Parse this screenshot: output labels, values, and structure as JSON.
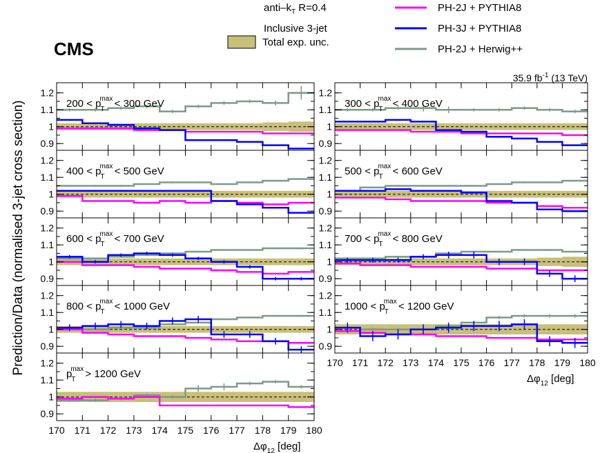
{
  "header": {
    "cms": "CMS",
    "jet_algo": "anti–k",
    "jet_algo_sub": "T",
    "jet_radius": " R=0.4",
    "selection": "Inclusive 3-jet",
    "lumi": "35.9 fb",
    "lumi_sup": "-1",
    "energy": " (13 TeV)"
  },
  "chart_data": {
    "type": "line",
    "title": "",
    "ylabel": "Prediction/Data (normalised 3-jet cross section)",
    "xlabel": "Δφ",
    "xlabel_sub": "12",
    "xlabel_unit": " [deg]",
    "xlim": [
      170,
      180
    ],
    "ylim": [
      0.86,
      1.26
    ],
    "y_ticks": [
      "0.9",
      "1",
      "1.1",
      "1.2"
    ],
    "x_ticks": [
      "170",
      "171",
      "172",
      "173",
      "174",
      "175",
      "176",
      "177",
      "178",
      "179",
      "180"
    ],
    "bin_edges": [
      170,
      171,
      172,
      173,
      174,
      175,
      176,
      177,
      178,
      179,
      180
    ],
    "reference_line": 1.0,
    "legend": [
      {
        "label": "Total exp. unc.",
        "key": "band",
        "color": "#c8bf7a"
      },
      {
        "label": "PH-2J + PYTHIA8",
        "key": "ph2j_py8",
        "color": "#ff00ff"
      },
      {
        "label": "PH-3J + PYTHIA8",
        "key": "ph3j_py8",
        "color": "#0000ff"
      },
      {
        "label": "PH-2J + Herwig++",
        "key": "ph2j_hw",
        "color": "#7a9a8a"
      }
    ],
    "panels": [
      {
        "label": "200 < p",
        "label_tail": " < 300 GeV",
        "band": [
          0.02,
          0.02,
          0.02,
          0.02,
          0.02,
          0.02,
          0.02,
          0.02,
          0.025,
          0.03
        ],
        "ph2j_py8": [
          0.99,
          0.99,
          0.99,
          0.98,
          0.98,
          0.97,
          0.97,
          0.97,
          0.96,
          0.96
        ],
        "ph3j_py8": [
          1.04,
          1.02,
          1.01,
          0.99,
          0.98,
          0.92,
          0.92,
          0.91,
          0.89,
          0.87
        ],
        "ph2j_hw": [
          1.1,
          1.1,
          1.11,
          1.12,
          1.09,
          1.12,
          1.14,
          1.15,
          1.14,
          1.2
        ],
        "ph2j_hw_err": [
          0.01,
          0.01,
          0.01,
          0.01,
          0.01,
          0.01,
          0.01,
          0.01,
          0.015,
          0.04
        ]
      },
      {
        "label": "300 < p",
        "label_tail": " < 400 GeV",
        "band": [
          0.02,
          0.02,
          0.02,
          0.02,
          0.02,
          0.02,
          0.02,
          0.02,
          0.02,
          0.02
        ],
        "ph2j_py8": [
          0.98,
          0.98,
          0.98,
          0.97,
          0.97,
          0.96,
          0.96,
          0.96,
          0.96,
          0.95
        ],
        "ph3j_py8": [
          1.03,
          1.03,
          1.04,
          1.03,
          0.98,
          0.97,
          0.94,
          0.93,
          0.91,
          0.89
        ],
        "ph2j_hw": [
          1.1,
          1.1,
          1.11,
          1.11,
          1.1,
          1.1,
          1.1,
          1.11,
          1.1,
          1.09
        ],
        "ph2j_hw_err": [
          0.01,
          0.01,
          0.01,
          0.02,
          0.02,
          0.01,
          0.01,
          0.01,
          0.01,
          0.01
        ]
      },
      {
        "label": "400 < p",
        "label_tail": " < 500 GeV",
        "band": [
          0.02,
          0.02,
          0.02,
          0.02,
          0.02,
          0.02,
          0.02,
          0.02,
          0.02,
          0.02
        ],
        "ph2j_py8": [
          0.99,
          0.96,
          0.96,
          0.95,
          0.96,
          0.95,
          0.96,
          0.95,
          0.94,
          0.95
        ],
        "ph3j_py8": [
          1.02,
          1.02,
          1.02,
          1.02,
          1.02,
          1.02,
          0.96,
          0.94,
          0.92,
          0.89
        ],
        "ph2j_hw": [
          1.05,
          1.05,
          1.05,
          1.06,
          1.07,
          1.07,
          1.06,
          1.07,
          1.08,
          1.09
        ],
        "ph2j_hw_err": [
          0.005,
          0.005,
          0.005,
          0.005,
          0.005,
          0.005,
          0.005,
          0.005,
          0.005,
          0.005
        ]
      },
      {
        "label": "500 < p",
        "label_tail": " < 600 GeV",
        "band": [
          0.02,
          0.02,
          0.02,
          0.02,
          0.02,
          0.02,
          0.02,
          0.02,
          0.02,
          0.02
        ],
        "ph2j_py8": [
          0.98,
          0.98,
          0.97,
          0.96,
          0.96,
          0.96,
          0.95,
          0.95,
          0.93,
          0.92
        ],
        "ph3j_py8": [
          1.02,
          1.02,
          1.03,
          1.02,
          1.02,
          1.01,
          0.96,
          0.95,
          0.91,
          0.9
        ],
        "ph2j_hw": [
          1.02,
          1.04,
          1.05,
          1.05,
          1.05,
          1.05,
          1.06,
          1.07,
          1.07,
          1.08
        ],
        "ph2j_hw_err": [
          0.005,
          0.005,
          0.005,
          0.005,
          0.005,
          0.005,
          0.005,
          0.005,
          0.005,
          0.005
        ]
      },
      {
        "label": "600 < p",
        "label_tail": " < 700 GeV",
        "band": [
          0.02,
          0.02,
          0.02,
          0.02,
          0.02,
          0.02,
          0.02,
          0.02,
          0.02,
          0.02
        ],
        "ph2j_py8": [
          1.0,
          0.98,
          0.98,
          0.97,
          0.96,
          0.96,
          0.95,
          0.94,
          0.93,
          0.94
        ],
        "ph3j_py8": [
          1.03,
          1.0,
          1.04,
          1.05,
          1.04,
          1.02,
          1.0,
          0.97,
          0.9,
          0.9
        ],
        "ph2j_hw": [
          1.02,
          1.02,
          1.03,
          1.04,
          1.05,
          1.06,
          1.07,
          1.07,
          1.08,
          1.08
        ],
        "ph2j_hw_err": [
          0.005,
          0.005,
          0.005,
          0.005,
          0.005,
          0.005,
          0.005,
          0.005,
          0.005,
          0.005
        ],
        "ph3j_err": [
          0.01,
          0.01,
          0.01,
          0.01,
          0.01,
          0.01,
          0.01,
          0.01,
          0.01,
          0.01
        ]
      },
      {
        "label": "700 < p",
        "label_tail": " < 800 GeV",
        "band": [
          0.02,
          0.02,
          0.02,
          0.02,
          0.02,
          0.02,
          0.02,
          0.02,
          0.025,
          0.03
        ],
        "ph2j_py8": [
          0.99,
          0.98,
          0.98,
          0.97,
          0.97,
          0.97,
          0.96,
          0.96,
          0.95,
          0.95
        ],
        "ph3j_py8": [
          1.01,
          1.01,
          1.01,
          1.03,
          1.04,
          1.04,
          1.0,
          1.0,
          0.93,
          0.9
        ],
        "ph2j_hw": [
          1.02,
          1.02,
          1.03,
          1.03,
          1.05,
          1.06,
          1.06,
          1.07,
          1.07,
          1.06
        ],
        "ph2j_hw_err": [
          0.005,
          0.005,
          0.005,
          0.005,
          0.005,
          0.005,
          0.005,
          0.005,
          0.005,
          0.005
        ],
        "ph3j_err": [
          0.015,
          0.015,
          0.015,
          0.015,
          0.02,
          0.02,
          0.02,
          0.02,
          0.02,
          0.02
        ]
      },
      {
        "label": "800 < p",
        "label_tail": " < 1000 GeV",
        "band": [
          0.02,
          0.02,
          0.02,
          0.02,
          0.02,
          0.02,
          0.02,
          0.02,
          0.02,
          0.02
        ],
        "ph2j_py8": [
          1.0,
          0.98,
          0.97,
          0.96,
          0.96,
          0.95,
          0.94,
          0.93,
          0.93,
          0.92
        ],
        "ph3j_py8": [
          1.01,
          1.02,
          1.03,
          1.02,
          1.05,
          1.06,
          0.97,
          0.97,
          0.93,
          0.88
        ],
        "ph2j_hw": [
          1.0,
          1.0,
          1.01,
          1.01,
          1.03,
          1.04,
          1.06,
          1.07,
          1.08,
          1.08
        ],
        "ph2j_hw_err": [
          0.005,
          0.005,
          0.005,
          0.005,
          0.005,
          0.005,
          0.005,
          0.005,
          0.005,
          0.005
        ],
        "ph3j_err": [
          0.02,
          0.02,
          0.02,
          0.02,
          0.02,
          0.02,
          0.02,
          0.02,
          0.02,
          0.02
        ]
      },
      {
        "label": "1000 < p",
        "label_tail": " < 1200 GeV",
        "band": [
          0.03,
          0.03,
          0.03,
          0.03,
          0.03,
          0.03,
          0.03,
          0.03,
          0.03,
          0.03
        ],
        "ph2j_py8": [
          0.99,
          0.98,
          0.97,
          0.97,
          0.96,
          0.96,
          0.95,
          0.95,
          0.94,
          0.94
        ],
        "ph3j_py8": [
          1.01,
          0.96,
          0.97,
          1.0,
          1.01,
          1.02,
          1.02,
          1.03,
          0.93,
          0.92
        ],
        "ph2j_hw": [
          1.01,
          1.0,
          1.0,
          1.0,
          1.02,
          1.04,
          1.07,
          1.08,
          1.08,
          1.08
        ],
        "ph2j_hw_err": [
          0.01,
          0.01,
          0.01,
          0.01,
          0.01,
          0.01,
          0.01,
          0.01,
          0.01,
          0.01
        ],
        "ph3j_err": [
          0.03,
          0.03,
          0.03,
          0.03,
          0.03,
          0.03,
          0.03,
          0.03,
          0.03,
          0.03
        ]
      },
      {
        "label": "p",
        "label_tail": " > 1200 GeV",
        "band": [
          0.03,
          0.03,
          0.03,
          0.03,
          0.03,
          0.03,
          0.03,
          0.03,
          0.03,
          0.03
        ],
        "ph2j_py8": [
          0.99,
          1.0,
          0.99,
          1.0,
          0.95,
          0.95,
          0.95,
          0.95,
          0.95,
          0.94
        ],
        "ph3j_py8": null,
        "ph2j_hw": [
          0.98,
          0.98,
          0.99,
          1.01,
          1.0,
          1.05,
          1.06,
          1.08,
          1.09,
          1.06
        ],
        "ph2j_hw_err": [
          0.01,
          0.01,
          0.01,
          0.01,
          0.01,
          0.02,
          0.02,
          0.01,
          0.01,
          0.01
        ]
      }
    ],
    "pt_symbol": "p",
    "pt_sub": "T",
    "pt_sup": "max"
  }
}
